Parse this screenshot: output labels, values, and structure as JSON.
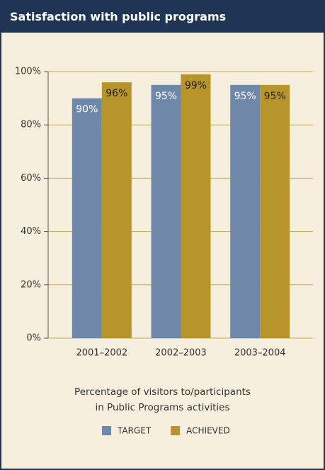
{
  "chart_data": {
    "type": "bar",
    "title": "Satisfaction with public programs",
    "xlabel": "Percentage of visitors to/participants in Public Programs activities",
    "categories": [
      "2001–2002",
      "2002–2003",
      "2003–2004"
    ],
    "series": [
      {
        "name": "TARGET",
        "color": "#6f87a9",
        "values": [
          90,
          95,
          95
        ],
        "value_labels": [
          "90%",
          "95%",
          "95%"
        ]
      },
      {
        "name": "ACHIEVED",
        "color": "#b8952b",
        "values": [
          96,
          99,
          95
        ],
        "value_labels": [
          "96%",
          "99%",
          "95%"
        ]
      }
    ],
    "ylim": [
      0,
      100
    ],
    "yticks": [
      {
        "value": 0,
        "label": "0%"
      },
      {
        "value": 20,
        "label": "20%"
      },
      {
        "value": 40,
        "label": "40%"
      },
      {
        "value": 60,
        "label": "60%"
      },
      {
        "value": 80,
        "label": "80%"
      },
      {
        "value": 100,
        "label": "100%"
      }
    ],
    "grid": true
  }
}
